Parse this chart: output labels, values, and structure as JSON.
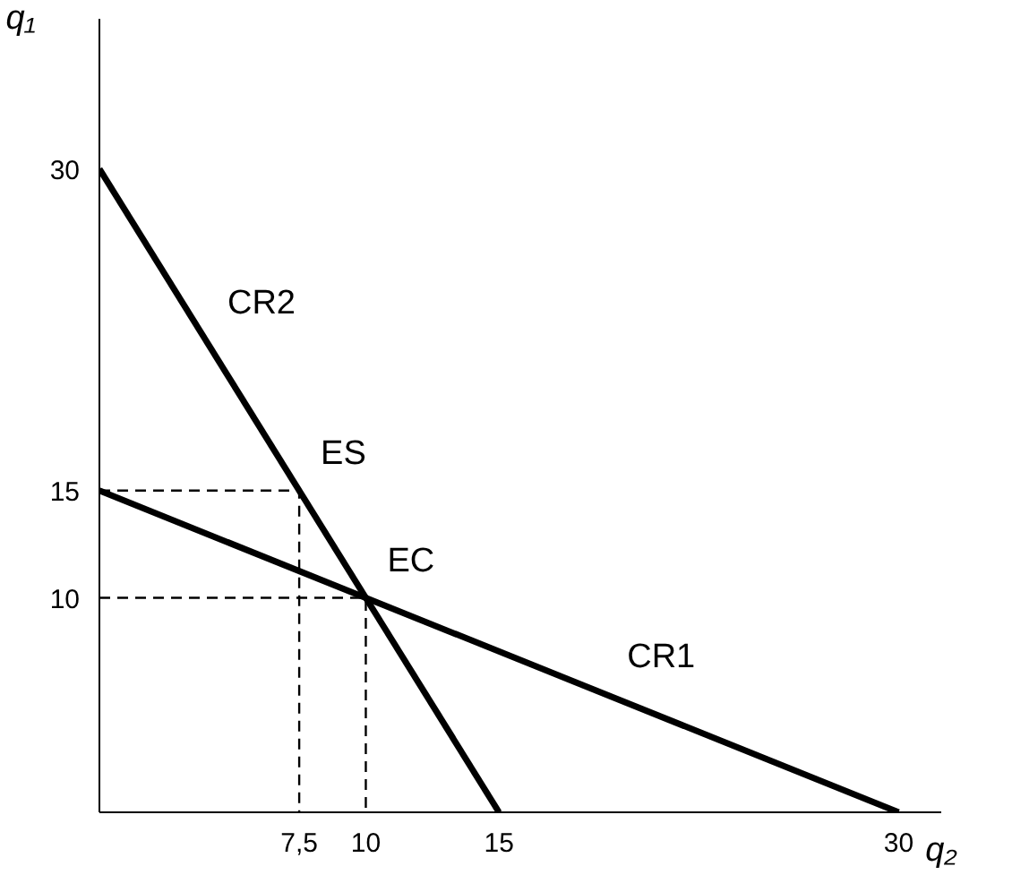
{
  "chart_data": {
    "type": "line",
    "xlabel": "q₂",
    "ylabel": "q₁",
    "xlim": [
      0,
      31.6
    ],
    "ylim": [
      0,
      37
    ],
    "xticks": [
      {
        "value": 7.5,
        "label": "7,5"
      },
      10,
      15,
      30
    ],
    "yticks": [
      10,
      15,
      30
    ],
    "grid": false,
    "marker": "none",
    "line_style": "solid",
    "series": [
      {
        "color": "#000000",
        "x": [
          0,
          15
        ],
        "values": [
          30,
          0
        ]
      },
      {
        "color": "#000000",
        "x": [
          0,
          30
        ],
        "values": [
          15,
          0
        ]
      },
      {
        "color": "#000000",
        "x": [
          0,
          7.5,
          7.5
        ],
        "values": [
          15,
          15,
          0
        ],
        "line_style": "dashed"
      },
      {
        "color": "#000000",
        "x": [
          0,
          10,
          10
        ],
        "values": [
          10,
          10,
          0
        ],
        "line_style": "dashed"
      }
    ],
    "annotations": [
      {
        "text": "CR2",
        "x": 4,
        "y": 22
      },
      {
        "text": "ES",
        "x": 7.5,
        "y": 15
      },
      {
        "text": "EC",
        "x": 10,
        "y": 10
      },
      {
        "text": "CR1",
        "x": 19,
        "y": 5.5
      }
    ]
  }
}
